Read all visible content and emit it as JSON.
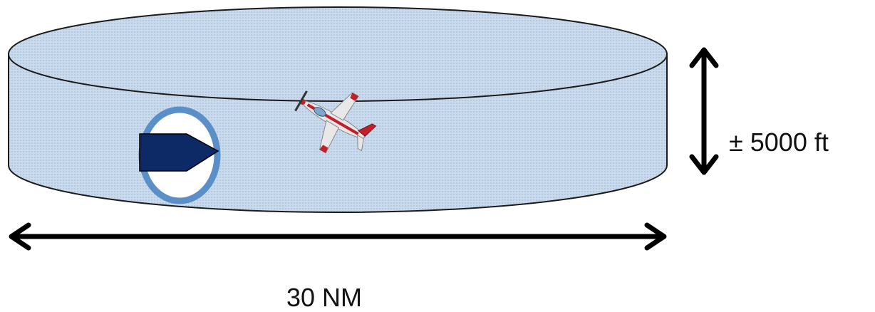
{
  "labels": {
    "height": "± 5000 ft",
    "width": "30 NM"
  },
  "colors": {
    "cylinder_fill": "#c6d8ea",
    "cylinder_top": "#bcd2e8",
    "outline": "#1a1a1a",
    "ring": "#5b8fc7",
    "intruder_shape": "#0d2a66",
    "aircraft_body": "#e6e6e6",
    "aircraft_accent": "#c0202a",
    "arrow": "#000000"
  },
  "icons": {
    "aircraft": "aircraft-icon",
    "intruder": "intruder-marker-icon"
  }
}
